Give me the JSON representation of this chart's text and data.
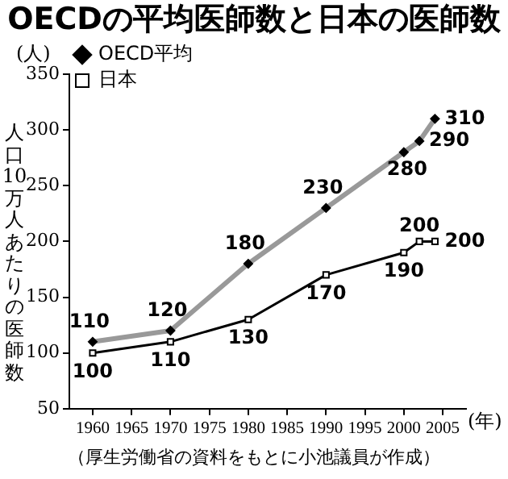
{
  "chart_data": {
    "type": "line",
    "title": "OECDの平均医師数と日本の医師数",
    "ylabel": "人口10万人あたりの医師数",
    "xlabel": "(年)",
    "annotations": [
      "(人)",
      "（厚生労働省の資料をもとに小池議員が作成）"
    ],
    "x": [
      1960,
      1970,
      1980,
      1990,
      2000,
      2002,
      2004
    ],
    "series": [
      {
        "name": "OECD平均",
        "color": "#999999",
        "marker": "diamond",
        "values": [
          110,
          120,
          180,
          230,
          280,
          290,
          310
        ]
      },
      {
        "name": "日本",
        "color": "#000000",
        "marker": "square",
        "values": [
          100,
          110,
          130,
          170,
          190,
          200,
          200
        ]
      }
    ],
    "xlim": [
      1957,
      2008
    ],
    "xticks": [
      1960,
      1965,
      1970,
      1975,
      1980,
      1985,
      1990,
      1995,
      2000,
      2005
    ],
    "ylim": [
      50,
      350
    ],
    "yticks": [
      50,
      100,
      150,
      200,
      250,
      300,
      350
    ],
    "data_labels": true,
    "legend": "top left",
    "grid": false,
    "line_style": "solid"
  }
}
